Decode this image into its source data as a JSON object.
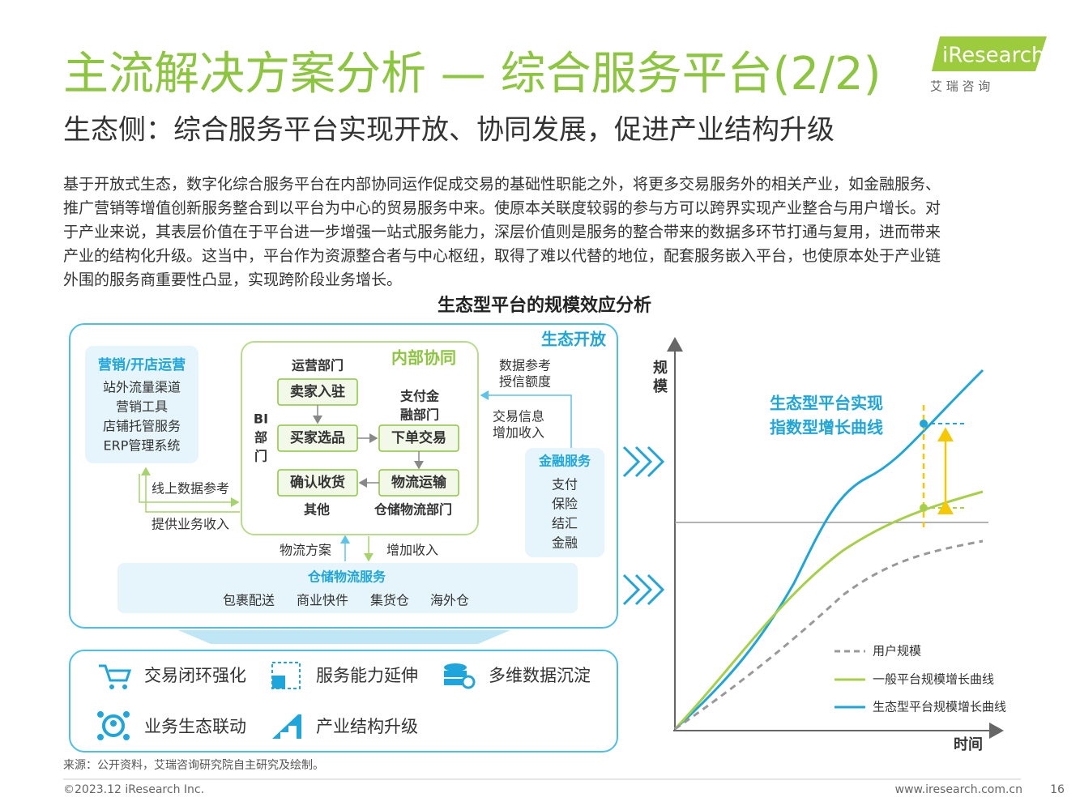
{
  "header": {
    "title": "主流解决方案分析 — 综合服务平台(2/2)",
    "subtitle": "生态侧：综合服务平台实现开放、协同发展，促进产业结构升级",
    "logo": "iResearch",
    "logo_cn": "艾 瑞 咨 询"
  },
  "body": {
    "lines": [
      "基于开放式生态，数字化综合服务平台在内部协同运作促成交易的基础性职能之外，将更多交易服务外的相关产业，如金融服务、",
      "推广营销等增值创新服务整合到以平台为中心的贸易服务中来。使原本关联度较弱的参与方可以跨界实现产业整合与用户增长。对",
      "于产业来说，其表层价值在于平台进一步增强一站式服务能力，深层价值则是服务的整合带来的数据多环节打通与复用，进而带来",
      "产业的结构化升级。这当中，平台作为资源整合者与中心枢纽，取得了难以代替的地位，配套服务嵌入平台，也使原本处于产业链",
      "外围的服务商重要性凸显，实现跨阶段业务增长。"
    ]
  },
  "diagram": {
    "title": "生态型平台的规模效应分析",
    "ecosystem_label": "生态开放",
    "marketing": {
      "title": "营销/开店运营",
      "items": [
        "站外流量渠道",
        "营销工具",
        "店铺托管服务",
        "ERP管理系统"
      ]
    },
    "internal": {
      "title": "内部协同",
      "ops_dept": "运营部门",
      "steps": [
        "卖家入驻",
        "买家选品",
        "下单交易",
        "物流运输",
        "确认收货"
      ],
      "pay_dept": [
        "支付金",
        "融部门"
      ],
      "bi_dept": [
        "BI",
        "部",
        "门"
      ],
      "other": "其他",
      "logistics_dept": "仓储物流部门"
    },
    "edges": {
      "data_credit": [
        "数据参考",
        "授信额度"
      ],
      "trade_income": [
        "交易信息",
        "增加收入"
      ],
      "online_data": "线上数据参考",
      "biz_income": "提供业务收入",
      "logistics_plan": "物流方案",
      "add_income": "增加收入"
    },
    "finance": {
      "title": "金融服务",
      "items": [
        "支付",
        "保险",
        "结汇",
        "金融"
      ]
    },
    "warehouse": {
      "title": "仓储物流服务",
      "items": [
        "包裹配送",
        "商业快件",
        "集货仓",
        "海外仓"
      ]
    },
    "benefits": [
      "交易闭环强化",
      "服务能力延伸",
      "多维数据沉淀",
      "业务生态联动",
      "产业结构升级"
    ]
  },
  "growth": {
    "y_label": [
      "规",
      "模"
    ],
    "x_label": "时间",
    "annotation": [
      "生态型平台实现",
      "指数型增长曲线"
    ],
    "legend": [
      "用户规模",
      "一般平台规模增长曲线",
      "生态型平台规模增长曲线"
    ]
  },
  "footer": {
    "source": "来源：公开资料，艾瑞咨询研究院自主研究及绘制。",
    "copyright": "©2023.12 iResearch Inc.",
    "url": "www.iresearch.com.cn",
    "page": "16"
  }
}
